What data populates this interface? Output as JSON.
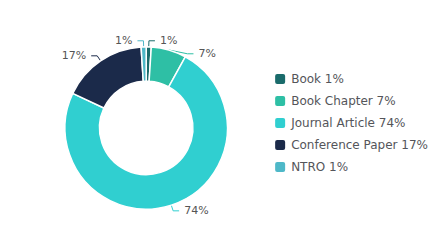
{
  "chart_data": {
    "type": "pie",
    "categories": [
      "Book 1%",
      "Book Chapter 7%",
      "Journal Article 74%",
      "Conference Paper 17%",
      "NTRO 1%"
    ],
    "values": [
      1,
      7,
      74,
      17,
      1
    ],
    "value_labels": [
      "1%",
      "7%",
      "74%",
      "17%",
      "1%"
    ],
    "colors": [
      "#1a6b6b",
      "#2ebfa5",
      "#30cfd0",
      "#1b2a4a",
      "#4eb8c8"
    ],
    "data_labels": true,
    "legend": "right"
  }
}
